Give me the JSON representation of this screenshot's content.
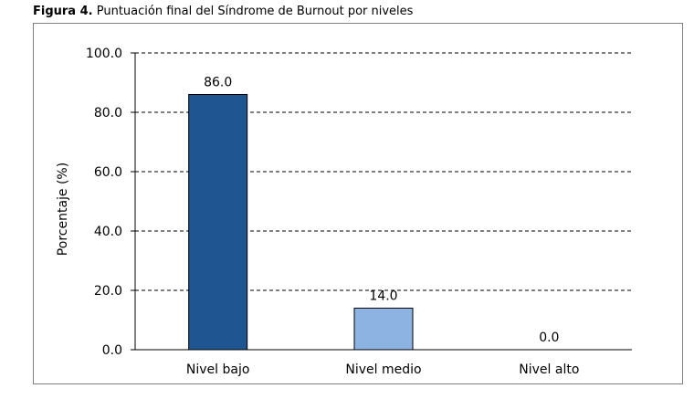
{
  "caption": {
    "label": "Figura 4.",
    "text": "Puntuación final del Síndrome de Burnout por niveles"
  },
  "chart_data": {
    "type": "bar",
    "title": "",
    "ylabel": "Porcentaje (%)",
    "xlabel": "",
    "ylim": [
      0,
      100
    ],
    "yticks": [
      0,
      20,
      40,
      60,
      80,
      100
    ],
    "ytick_labels": [
      "0.0",
      "20.0",
      "40.0",
      "60.0",
      "80.0",
      "100.0"
    ],
    "grid": "horizontal-dashed",
    "categories": [
      "Nivel bajo",
      "Nivel medio",
      "Nivel alto"
    ],
    "values": [
      86.0,
      14.0,
      0.0
    ],
    "value_labels": [
      "86.0",
      "14.0",
      "0.0"
    ],
    "bar_colors": [
      "#1f5591",
      "#8db3e2",
      "#8db3e2"
    ],
    "bar_border": "#000000",
    "grid_color": "#000000"
  }
}
